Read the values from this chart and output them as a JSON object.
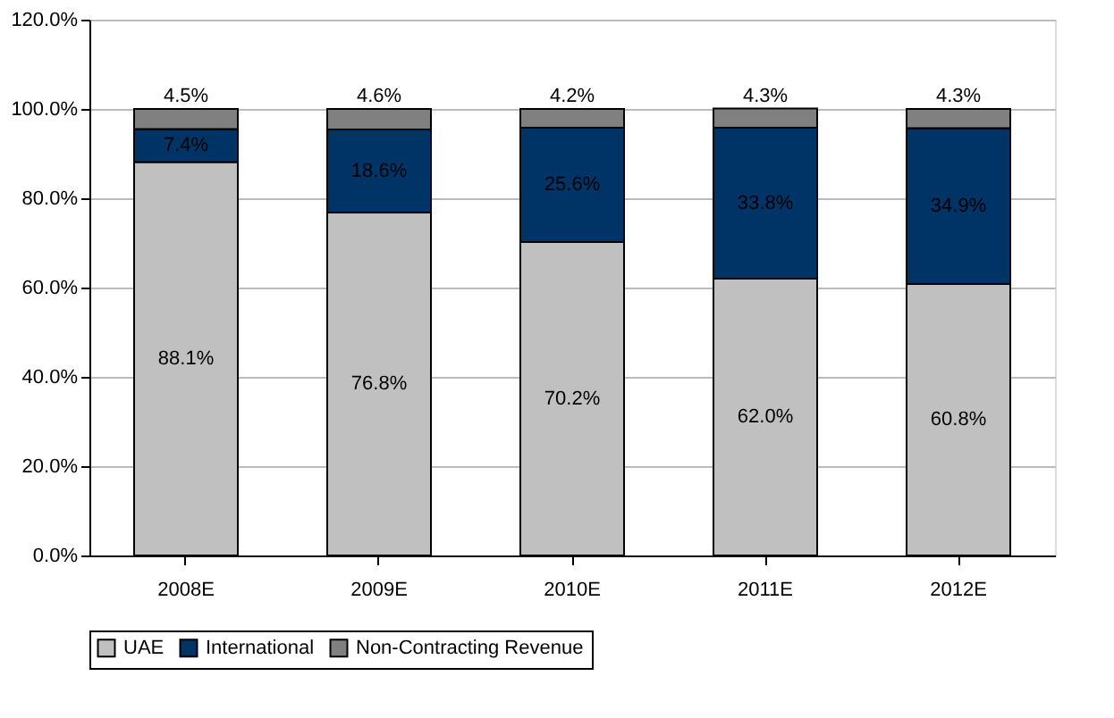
{
  "chart_data": {
    "type": "bar",
    "stacked": true,
    "categories": [
      "2008E",
      "2009E",
      "2010E",
      "2011E",
      "2012E"
    ],
    "series": [
      {
        "name": "UAE",
        "color": "#c0c0c0",
        "values": [
          88.1,
          76.8,
          70.2,
          62.0,
          60.8
        ],
        "value_labels": [
          "88.1%",
          "76.8%",
          "70.2%",
          "62.0%",
          "60.8%"
        ]
      },
      {
        "name": "International",
        "color": "#003366",
        "values": [
          7.4,
          18.6,
          25.6,
          33.8,
          34.9
        ],
        "value_labels": [
          "7.4%",
          "18.6%",
          "25.6%",
          "33.8%",
          "34.9%"
        ]
      },
      {
        "name": "Non-Contracting Revenue",
        "color": "#808080",
        "values": [
          4.5,
          4.6,
          4.2,
          4.3,
          4.3
        ],
        "value_labels": [
          "4.5%",
          "4.6%",
          "4.2%",
          "4.3%",
          "4.3%"
        ]
      }
    ],
    "ylim": [
      0,
      120
    ],
    "yticks": [
      {
        "value": 0,
        "label": "0.0%"
      },
      {
        "value": 20,
        "label": "20.0%"
      },
      {
        "value": 40,
        "label": "40.0%"
      },
      {
        "value": 60,
        "label": "60.0%"
      },
      {
        "value": 80,
        "label": "80.0%"
      },
      {
        "value": 100,
        "label": "100.0%"
      },
      {
        "value": 120,
        "label": "120.0%"
      }
    ],
    "grid": "y",
    "legend": "bottom"
  }
}
